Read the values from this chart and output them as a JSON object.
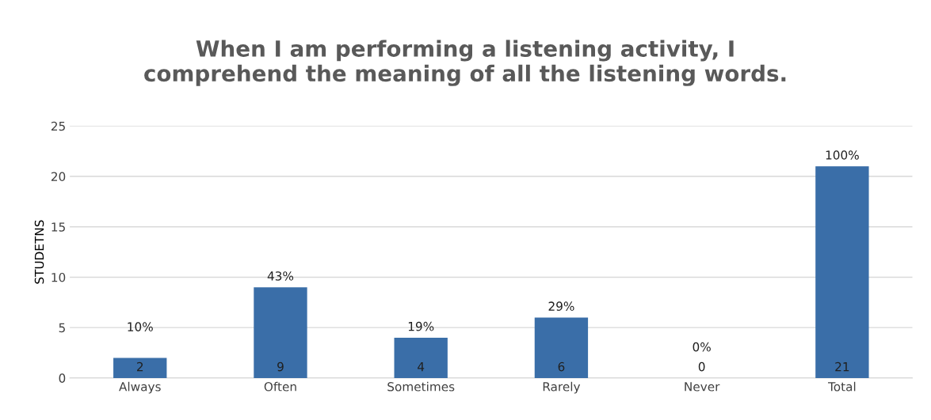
{
  "chart_data": {
    "type": "bar",
    "title": "When I am performing a listening activity, I\ncomprehend the meaning of all the listening words.",
    "ylabel": "STUDETNS",
    "categories": [
      "Always",
      "Often",
      "Sometimes",
      "Rarely",
      "Never",
      "Total"
    ],
    "values": [
      2,
      9,
      4,
      6,
      0,
      21
    ],
    "color": "#3a6ea8",
    "ylim": [
      0,
      25
    ],
    "yticks": [
      0,
      5,
      10,
      15,
      20,
      25
    ],
    "grid": "y",
    "data_labels": true,
    "annotations": [
      {
        "text": "10%",
        "x": "Always",
        "y": 2
      },
      {
        "text": "43%",
        "x": "Often",
        "y": 9
      },
      {
        "text": "19%",
        "x": "Sometimes",
        "y": 4
      },
      {
        "text": "29%",
        "x": "Rarely",
        "y": 6
      },
      {
        "text": "0%",
        "x": "Never",
        "y": 0
      },
      {
        "text": "100%",
        "x": "Total",
        "y": 21
      }
    ]
  }
}
